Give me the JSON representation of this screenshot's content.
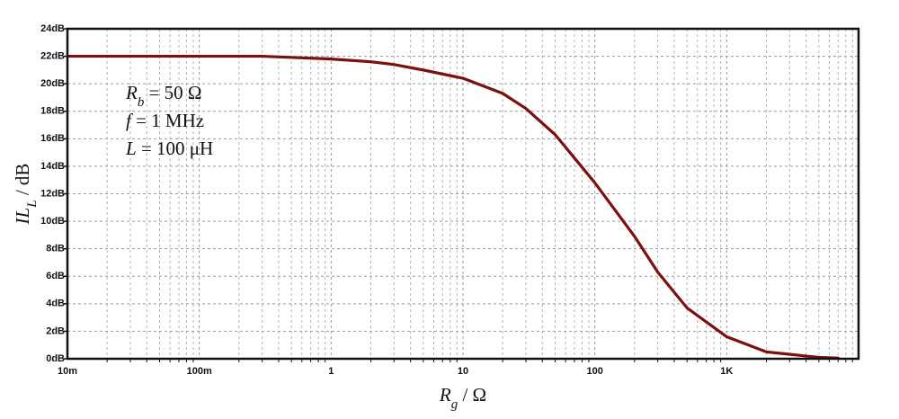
{
  "chart_data": {
    "type": "line",
    "xscale": "log",
    "grid": true,
    "xlabel": {
      "symbol": "R",
      "subscript": "g",
      "text": " / Ω"
    },
    "ylabel": {
      "symbol": "IL",
      "subscript": "L",
      "text": " / dB"
    },
    "annotations": [
      {
        "symbol": "R",
        "subscript": "b",
        "text": " = 50 Ω"
      },
      {
        "symbol": "f",
        "text": " = 1 MHz"
      },
      {
        "symbol": "L",
        "text": " = 100 μH"
      }
    ],
    "x": [
      0.01,
      0.3,
      1,
      2,
      3,
      5,
      10,
      20,
      30,
      50,
      100,
      200,
      300,
      500,
      1000,
      2000,
      5000,
      7000
    ],
    "series": [
      {
        "color": "#7a1010",
        "values": [
          22,
          22,
          21.8,
          21.6,
          21.4,
          21,
          20.4,
          19.3,
          18.2,
          16.3,
          12.8,
          8.9,
          6.3,
          3.7,
          1.6,
          0.5,
          0.1,
          0.05
        ]
      }
    ],
    "xlim": [
      0.01,
      10000
    ],
    "xticks": [
      {
        "value": 0.01,
        "label": "10m"
      },
      {
        "value": 0.1,
        "label": "100m"
      },
      1,
      10,
      100,
      {
        "value": 1000,
        "label": "1K"
      }
    ],
    "xminorticks": [
      0.02,
      0.03,
      0.04,
      0.05,
      0.06,
      0.07,
      0.08,
      0.09,
      0.2,
      0.3,
      0.4,
      0.5,
      0.6,
      0.7,
      0.8,
      0.9,
      2,
      3,
      4,
      5,
      6,
      7,
      8,
      9,
      20,
      30,
      40,
      50,
      60,
      70,
      80,
      90,
      200,
      300,
      400,
      500,
      600,
      700,
      800,
      900,
      2000,
      3000,
      4000,
      5000,
      6000,
      7000,
      8000,
      9000
    ],
    "ylim": [
      0,
      24
    ],
    "yticks": [
      {
        "value": 0,
        "label": "0dB"
      },
      {
        "value": 2,
        "label": "2dB"
      },
      {
        "value": 4,
        "label": "4dB"
      },
      {
        "value": 6,
        "label": "6dB"
      },
      {
        "value": 8,
        "label": "8dB"
      },
      {
        "value": 10,
        "label": "10dB"
      },
      {
        "value": 12,
        "label": "12dB"
      },
      {
        "value": 14,
        "label": "14dB"
      },
      {
        "value": 16,
        "label": "16dB"
      },
      {
        "value": 18,
        "label": "18dB"
      },
      {
        "value": 20,
        "label": "20dB"
      },
      {
        "value": 22,
        "label": "22dB"
      },
      {
        "value": 24,
        "label": "24dB"
      }
    ]
  }
}
